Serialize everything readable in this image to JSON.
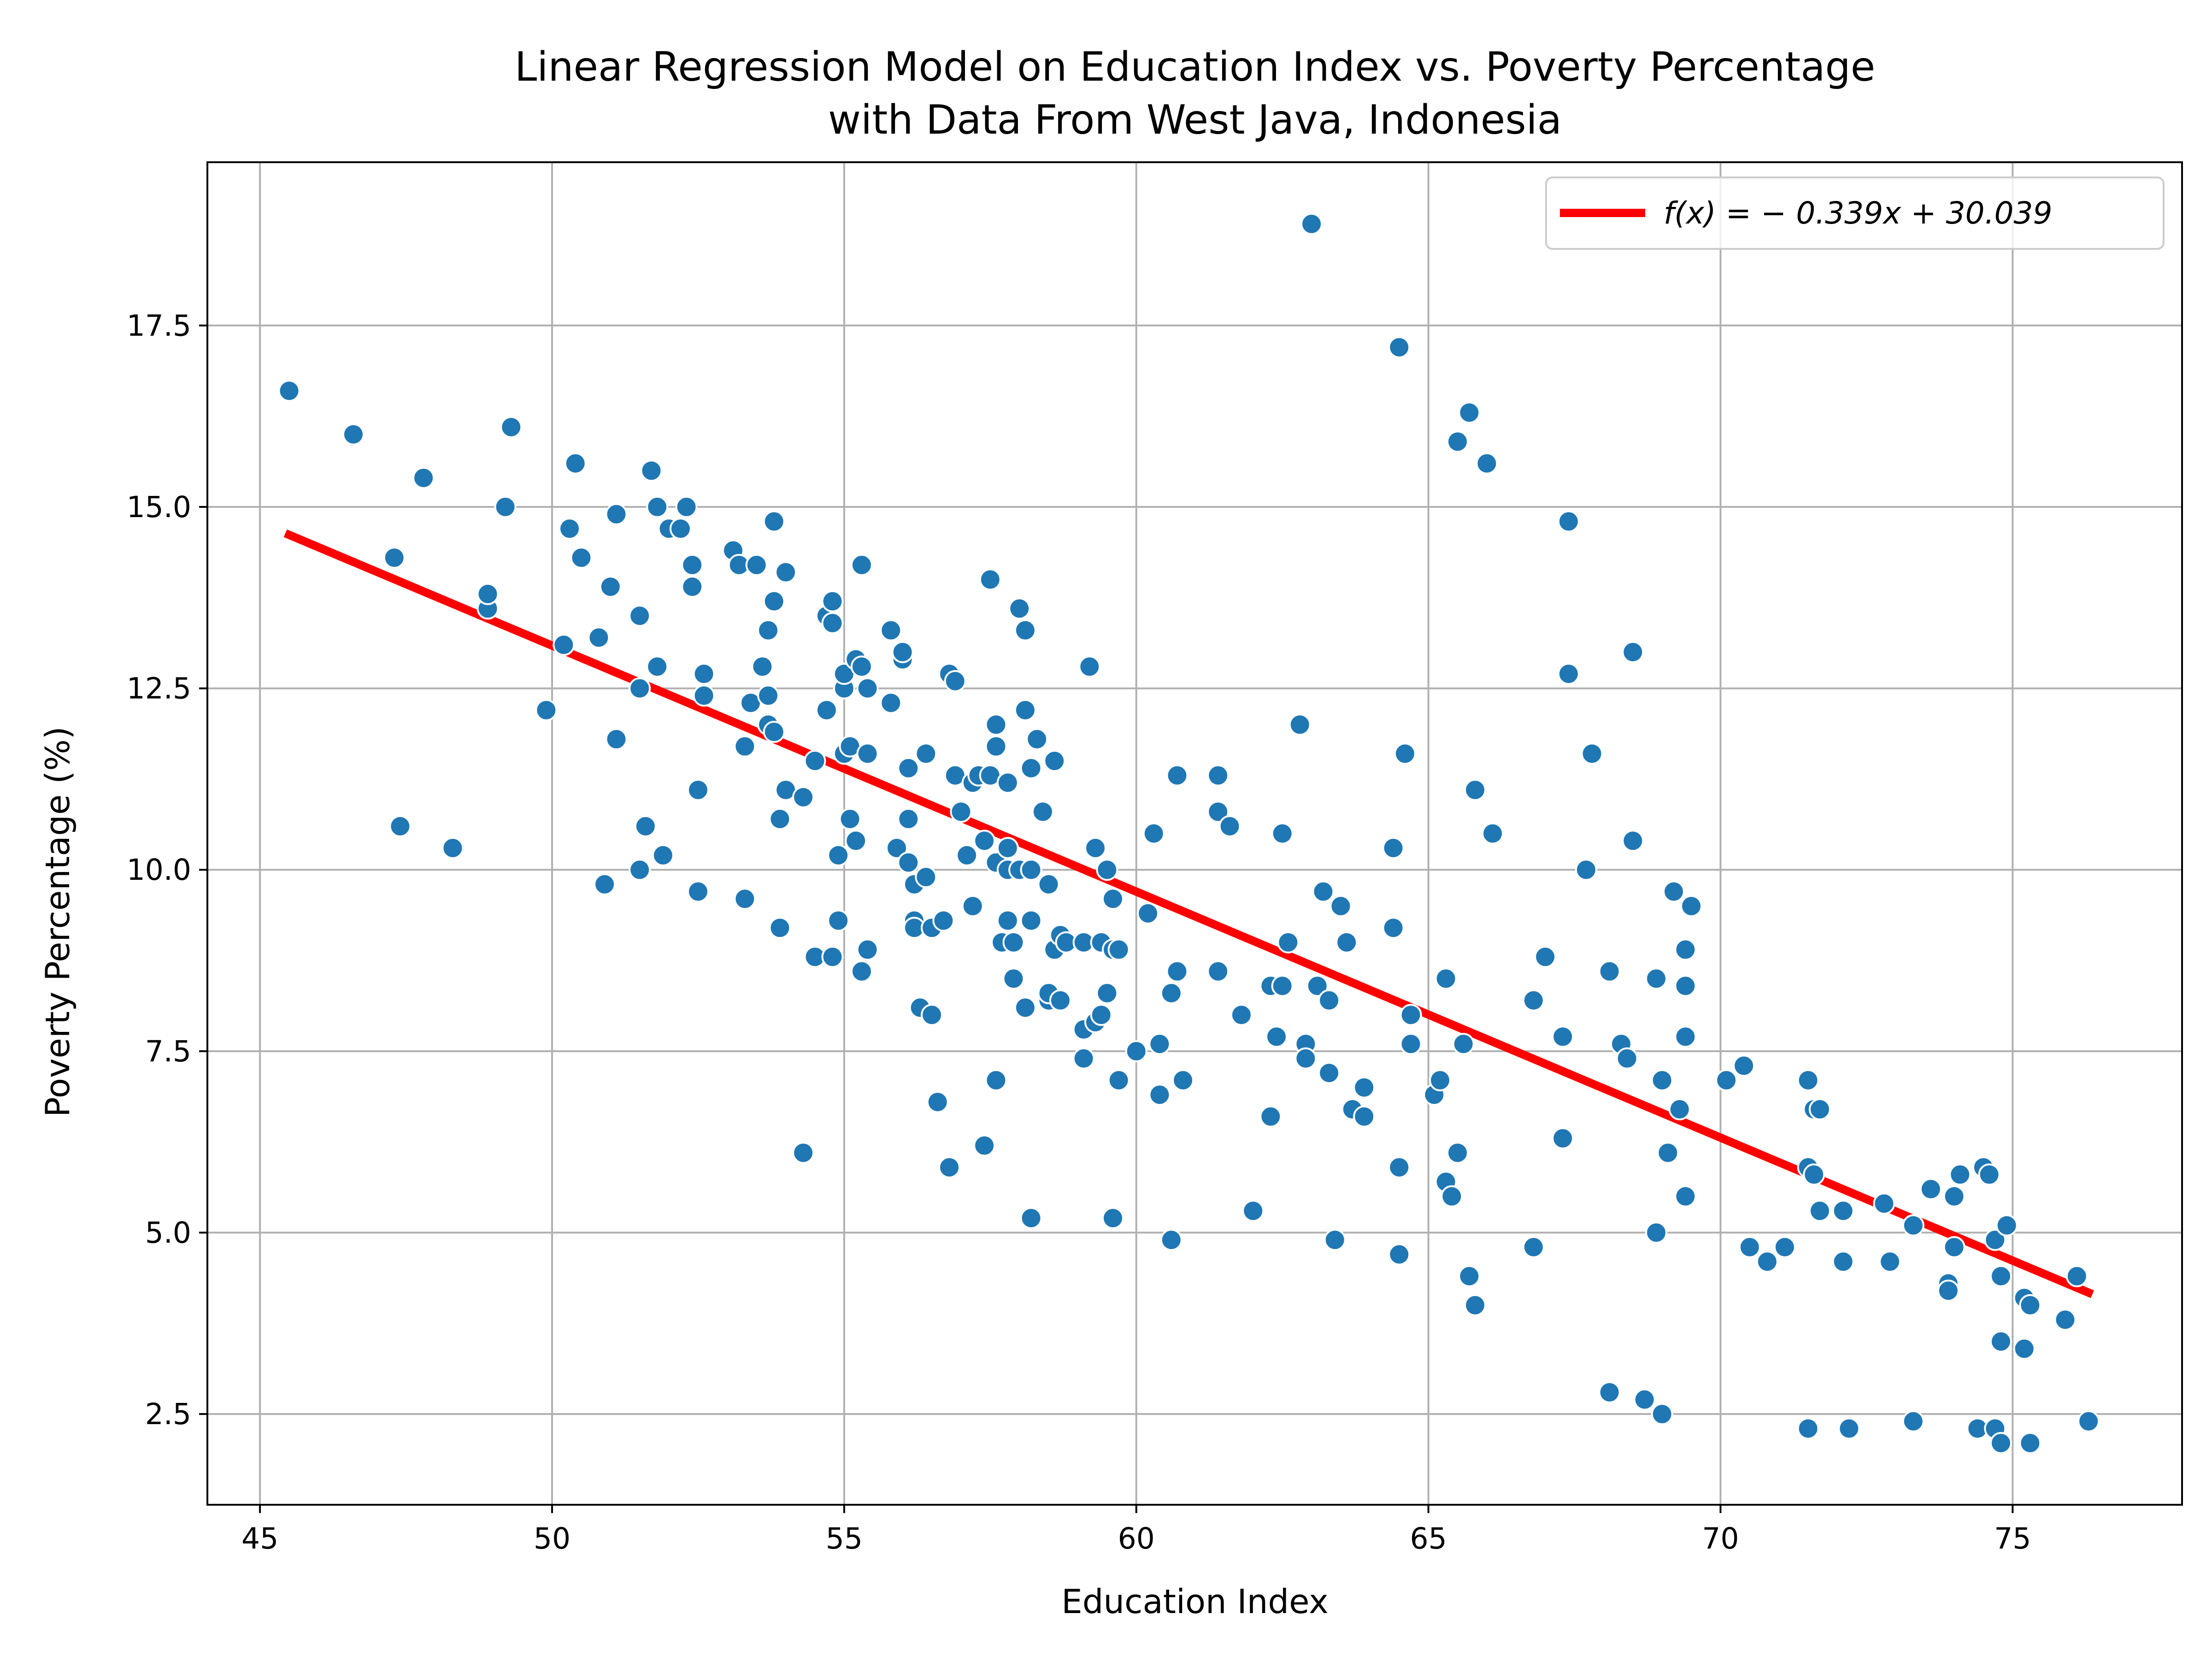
{
  "chart_data": {
    "type": "scatter",
    "title_lines": [
      "Linear Regression Model on Education Index vs. Poverty Percentage",
      "with Data From West Java, Indonesia"
    ],
    "xlabel": "Education Index",
    "ylabel": "Poverty Percentage (%)",
    "xlim": [
      44.1,
      77.9
    ],
    "ylim": [
      1.25,
      19.75
    ],
    "xticks": [
      45,
      50,
      55,
      60,
      65,
      70,
      75
    ],
    "yticks": [
      2.5,
      5.0,
      7.5,
      10.0,
      12.5,
      15.0,
      17.5
    ],
    "xtick_labels": [
      "45",
      "50",
      "55",
      "60",
      "65",
      "70",
      "75"
    ],
    "ytick_labels": [
      "2.5",
      "5.0",
      "7.5",
      "10.0",
      "12.5",
      "15.0",
      "17.5"
    ],
    "grid": true,
    "legend_position": "upper right",
    "legend_label": "f(x) = − 0.339x + 30.039",
    "colors": {
      "points": "#1f77b4",
      "line": "#ff0000",
      "grid": "#b0b0b0"
    },
    "regression": {
      "slope": -0.339,
      "intercept": 30.039,
      "x_range": [
        45.5,
        76.3
      ]
    },
    "points": [
      [
        45.5,
        16.6
      ],
      [
        46.6,
        16.0
      ],
      [
        47.3,
        14.3
      ],
      [
        47.4,
        10.6
      ],
      [
        47.8,
        15.4
      ],
      [
        48.3,
        10.3
      ],
      [
        48.9,
        13.6
      ],
      [
        48.9,
        13.8
      ],
      [
        49.2,
        15.0
      ],
      [
        49.3,
        16.1
      ],
      [
        49.9,
        12.2
      ],
      [
        50.2,
        13.1
      ],
      [
        50.3,
        14.7
      ],
      [
        50.4,
        15.6
      ],
      [
        50.5,
        14.3
      ],
      [
        50.8,
        13.2
      ],
      [
        50.9,
        9.8
      ],
      [
        51.0,
        13.9
      ],
      [
        51.1,
        11.8
      ],
      [
        51.1,
        14.9
      ],
      [
        51.5,
        13.5
      ],
      [
        51.5,
        12.5
      ],
      [
        51.5,
        10.0
      ],
      [
        51.6,
        10.6
      ],
      [
        51.7,
        15.5
      ],
      [
        51.8,
        15.0
      ],
      [
        51.8,
        12.8
      ],
      [
        51.9,
        10.2
      ],
      [
        52.0,
        14.7
      ],
      [
        52.2,
        14.7
      ],
      [
        52.3,
        15.0
      ],
      [
        52.4,
        13.9
      ],
      [
        52.4,
        14.2
      ],
      [
        52.5,
        9.7
      ],
      [
        52.5,
        11.1
      ],
      [
        52.6,
        12.4
      ],
      [
        52.6,
        12.7
      ],
      [
        53.1,
        14.4
      ],
      [
        53.2,
        14.2
      ],
      [
        53.3,
        11.7
      ],
      [
        53.3,
        9.6
      ],
      [
        53.4,
        12.3
      ],
      [
        53.5,
        14.2
      ],
      [
        53.6,
        12.8
      ],
      [
        53.7,
        12.4
      ],
      [
        53.7,
        12.0
      ],
      [
        53.7,
        13.3
      ],
      [
        53.8,
        14.8
      ],
      [
        53.8,
        13.7
      ],
      [
        53.8,
        11.9
      ],
      [
        53.9,
        10.7
      ],
      [
        53.9,
        9.2
      ],
      [
        54.0,
        11.1
      ],
      [
        54.0,
        14.1
      ],
      [
        54.3,
        11.0
      ],
      [
        54.3,
        6.1
      ],
      [
        54.5,
        8.8
      ],
      [
        54.5,
        11.5
      ],
      [
        54.7,
        12.2
      ],
      [
        54.7,
        13.5
      ],
      [
        54.8,
        13.7
      ],
      [
        54.8,
        13.4
      ],
      [
        54.8,
        8.8
      ],
      [
        54.9,
        9.3
      ],
      [
        54.9,
        10.2
      ],
      [
        55.0,
        12.5
      ],
      [
        55.0,
        12.7
      ],
      [
        55.0,
        11.6
      ],
      [
        55.1,
        11.7
      ],
      [
        55.1,
        10.7
      ],
      [
        55.2,
        12.9
      ],
      [
        55.2,
        10.4
      ],
      [
        55.3,
        12.8
      ],
      [
        55.3,
        14.2
      ],
      [
        55.3,
        8.6
      ],
      [
        55.4,
        12.5
      ],
      [
        55.4,
        11.6
      ],
      [
        55.4,
        8.9
      ],
      [
        55.8,
        12.3
      ],
      [
        55.8,
        13.3
      ],
      [
        55.9,
        10.3
      ],
      [
        56.0,
        12.9
      ],
      [
        56.0,
        13.0
      ],
      [
        56.1,
        10.7
      ],
      [
        56.1,
        10.1
      ],
      [
        56.1,
        11.4
      ],
      [
        56.2,
        9.3
      ],
      [
        56.2,
        9.8
      ],
      [
        56.2,
        9.2
      ],
      [
        56.3,
        8.1
      ],
      [
        56.4,
        11.6
      ],
      [
        56.4,
        9.9
      ],
      [
        56.5,
        9.2
      ],
      [
        56.5,
        8.0
      ],
      [
        56.6,
        6.8
      ],
      [
        56.7,
        9.3
      ],
      [
        56.8,
        5.9
      ],
      [
        56.8,
        12.7
      ],
      [
        56.9,
        12.6
      ],
      [
        56.9,
        11.3
      ],
      [
        57.0,
        10.8
      ],
      [
        57.1,
        10.2
      ],
      [
        57.2,
        11.2
      ],
      [
        57.2,
        9.5
      ],
      [
        57.3,
        11.3
      ],
      [
        57.4,
        10.4
      ],
      [
        57.4,
        6.2
      ],
      [
        57.5,
        14.0
      ],
      [
        57.5,
        11.3
      ],
      [
        57.6,
        12.0
      ],
      [
        57.6,
        11.7
      ],
      [
        57.6,
        10.1
      ],
      [
        57.6,
        7.1
      ],
      [
        57.7,
        9.0
      ],
      [
        57.8,
        10.3
      ],
      [
        57.8,
        10.0
      ],
      [
        57.8,
        11.2
      ],
      [
        57.8,
        9.3
      ],
      [
        57.9,
        9.0
      ],
      [
        57.9,
        8.5
      ],
      [
        58.0,
        13.6
      ],
      [
        58.0,
        10.0
      ],
      [
        58.1,
        13.3
      ],
      [
        58.1,
        12.2
      ],
      [
        58.1,
        8.1
      ],
      [
        58.2,
        11.4
      ],
      [
        58.2,
        10.0
      ],
      [
        58.2,
        9.3
      ],
      [
        58.2,
        5.2
      ],
      [
        58.3,
        11.8
      ],
      [
        58.4,
        10.8
      ],
      [
        58.5,
        8.2
      ],
      [
        58.5,
        9.8
      ],
      [
        58.5,
        8.3
      ],
      [
        58.6,
        11.5
      ],
      [
        58.6,
        8.9
      ],
      [
        58.7,
        8.2
      ],
      [
        58.7,
        9.1
      ],
      [
        58.8,
        9.0
      ],
      [
        59.1,
        9.0
      ],
      [
        59.1,
        7.8
      ],
      [
        59.1,
        7.4
      ],
      [
        59.2,
        12.8
      ],
      [
        59.3,
        7.9
      ],
      [
        59.3,
        10.3
      ],
      [
        59.4,
        9.0
      ],
      [
        59.4,
        8.0
      ],
      [
        59.5,
        10.0
      ],
      [
        59.5,
        8.3
      ],
      [
        59.6,
        9.6
      ],
      [
        59.6,
        8.9
      ],
      [
        59.6,
        5.2
      ],
      [
        59.7,
        7.1
      ],
      [
        59.7,
        8.9
      ],
      [
        60.0,
        7.5
      ],
      [
        60.2,
        9.4
      ],
      [
        60.3,
        10.5
      ],
      [
        60.4,
        6.9
      ],
      [
        60.4,
        7.6
      ],
      [
        60.6,
        4.9
      ],
      [
        60.6,
        8.3
      ],
      [
        60.7,
        8.6
      ],
      [
        60.7,
        11.3
      ],
      [
        60.8,
        7.1
      ],
      [
        61.4,
        10.8
      ],
      [
        61.4,
        11.3
      ],
      [
        61.4,
        8.6
      ],
      [
        61.6,
        10.6
      ],
      [
        61.8,
        8.0
      ],
      [
        62.0,
        5.3
      ],
      [
        62.3,
        8.4
      ],
      [
        62.3,
        6.6
      ],
      [
        62.4,
        7.7
      ],
      [
        62.5,
        8.4
      ],
      [
        62.5,
        10.5
      ],
      [
        62.6,
        9.0
      ],
      [
        62.8,
        12.0
      ],
      [
        62.9,
        7.6
      ],
      [
        62.9,
        7.4
      ],
      [
        63.0,
        18.9
      ],
      [
        63.1,
        8.4
      ],
      [
        63.2,
        9.7
      ],
      [
        63.3,
        8.2
      ],
      [
        63.3,
        7.2
      ],
      [
        63.4,
        4.9
      ],
      [
        63.5,
        9.5
      ],
      [
        63.6,
        9.0
      ],
      [
        63.7,
        6.7
      ],
      [
        63.9,
        7.0
      ],
      [
        63.9,
        6.6
      ],
      [
        64.4,
        9.2
      ],
      [
        64.4,
        10.3
      ],
      [
        64.5,
        17.2
      ],
      [
        64.5,
        5.9
      ],
      [
        64.5,
        4.7
      ],
      [
        64.6,
        11.6
      ],
      [
        64.7,
        7.6
      ],
      [
        64.7,
        8.0
      ],
      [
        65.1,
        6.9
      ],
      [
        65.2,
        7.1
      ],
      [
        65.3,
        8.5
      ],
      [
        65.3,
        5.7
      ],
      [
        65.4,
        5.5
      ],
      [
        65.5,
        15.9
      ],
      [
        65.5,
        6.1
      ],
      [
        65.6,
        7.6
      ],
      [
        65.7,
        16.3
      ],
      [
        65.7,
        4.4
      ],
      [
        65.8,
        11.1
      ],
      [
        65.8,
        4.0
      ],
      [
        66.0,
        15.6
      ],
      [
        66.1,
        10.5
      ],
      [
        66.8,
        4.8
      ],
      [
        66.8,
        8.2
      ],
      [
        67.0,
        8.8
      ],
      [
        67.3,
        6.3
      ],
      [
        67.3,
        7.7
      ],
      [
        67.4,
        14.8
      ],
      [
        67.4,
        12.7
      ],
      [
        67.7,
        10.0
      ],
      [
        67.8,
        11.6
      ],
      [
        68.1,
        8.6
      ],
      [
        68.1,
        2.8
      ],
      [
        68.3,
        7.6
      ],
      [
        68.4,
        7.4
      ],
      [
        68.5,
        13.0
      ],
      [
        68.5,
        10.4
      ],
      [
        68.7,
        2.7
      ],
      [
        68.9,
        5.0
      ],
      [
        68.9,
        8.5
      ],
      [
        69.0,
        7.1
      ],
      [
        69.0,
        2.5
      ],
      [
        69.1,
        6.1
      ],
      [
        69.2,
        9.7
      ],
      [
        69.2,
        9.7
      ],
      [
        69.3,
        6.7
      ],
      [
        69.4,
        8.9
      ],
      [
        69.4,
        7.7
      ],
      [
        69.4,
        8.4
      ],
      [
        69.4,
        5.5
      ],
      [
        69.5,
        9.5
      ],
      [
        70.1,
        7.1
      ],
      [
        70.4,
        7.3
      ],
      [
        70.5,
        4.8
      ],
      [
        70.8,
        4.6
      ],
      [
        71.1,
        4.8
      ],
      [
        71.5,
        7.1
      ],
      [
        71.5,
        5.9
      ],
      [
        71.5,
        2.3
      ],
      [
        71.6,
        6.7
      ],
      [
        71.6,
        5.8
      ],
      [
        71.7,
        5.3
      ],
      [
        71.7,
        6.7
      ],
      [
        72.1,
        5.3
      ],
      [
        72.1,
        4.6
      ],
      [
        72.2,
        2.3
      ],
      [
        72.8,
        5.4
      ],
      [
        72.9,
        4.6
      ],
      [
        73.3,
        2.4
      ],
      [
        73.3,
        5.1
      ],
      [
        73.6,
        5.6
      ],
      [
        73.9,
        4.3
      ],
      [
        73.9,
        4.2
      ],
      [
        74.0,
        4.8
      ],
      [
        74.0,
        5.5
      ],
      [
        74.1,
        5.8
      ],
      [
        74.4,
        2.3
      ],
      [
        74.5,
        5.9
      ],
      [
        74.6,
        5.8
      ],
      [
        74.7,
        4.9
      ],
      [
        74.7,
        2.3
      ],
      [
        74.8,
        2.1
      ],
      [
        74.8,
        3.5
      ],
      [
        74.8,
        4.4
      ],
      [
        74.9,
        5.1
      ],
      [
        75.2,
        4.1
      ],
      [
        75.2,
        3.4
      ],
      [
        75.3,
        4.0
      ],
      [
        75.3,
        2.1
      ],
      [
        75.9,
        3.8
      ],
      [
        76.1,
        4.4
      ],
      [
        76.3,
        2.4
      ]
    ]
  }
}
